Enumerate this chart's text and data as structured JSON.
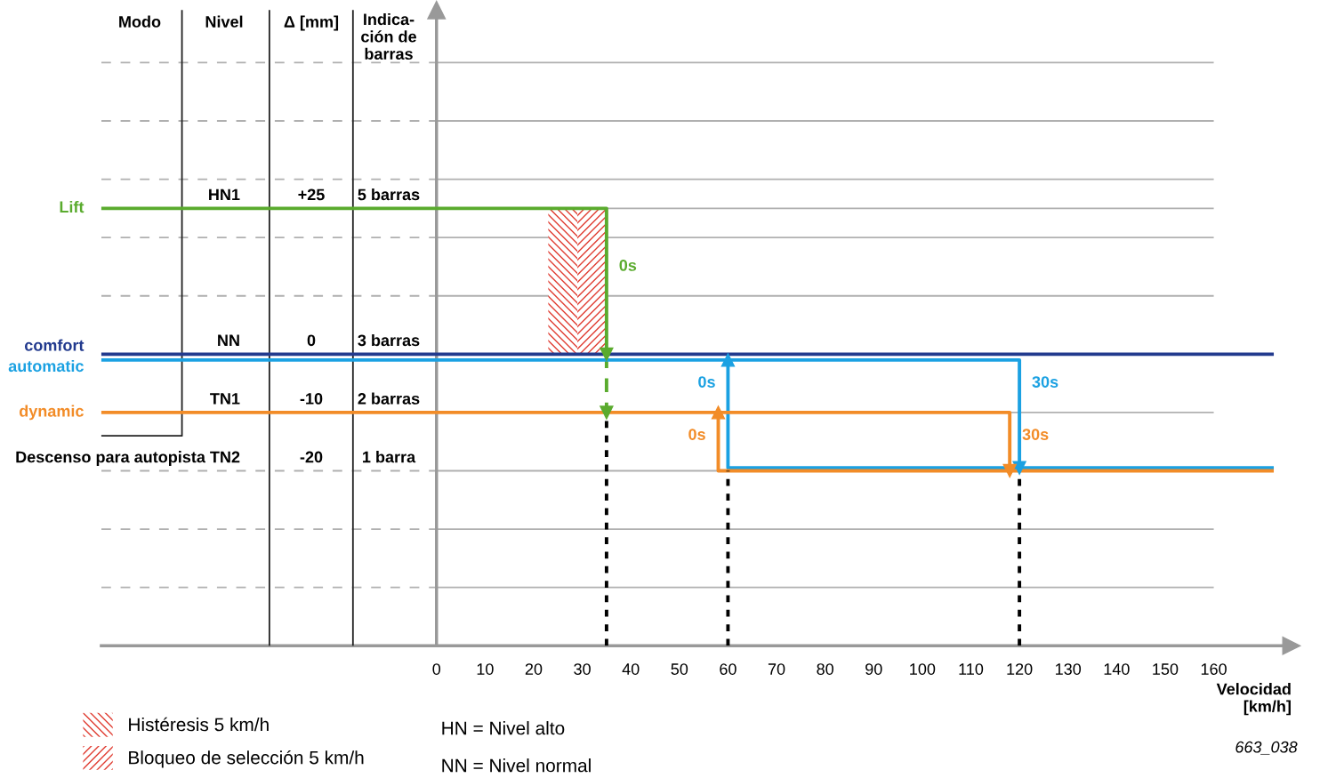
{
  "chart_data": {
    "type": "line",
    "xlabel": "Velocidad\n[km/h]",
    "ylabel": "Δ [mm]",
    "xlim": [
      -69,
      176
    ],
    "ylim": [
      -50,
      59
    ],
    "xticks": [
      0,
      10,
      20,
      30,
      40,
      50,
      60,
      70,
      80,
      90,
      100,
      110,
      120,
      130,
      140,
      150,
      160
    ],
    "yticks": [
      {
        "value": -40,
        "label": null
      },
      {
        "value": -30,
        "label": null
      },
      {
        "value": -20,
        "label": "-20"
      },
      {
        "value": -10,
        "label": "-10"
      },
      {
        "value": 0,
        "label": "0"
      },
      {
        "value": 10,
        "label": null
      },
      {
        "value": 20,
        "label": null
      },
      {
        "value": 25,
        "label": "+25"
      },
      {
        "value": 30,
        "label": null
      },
      {
        "value": 40,
        "label": null
      },
      {
        "value": 50,
        "label": null
      }
    ],
    "grid": "y",
    "legend": "bottom left",
    "series": [
      {
        "type": "area",
        "name": "Histéresis 5 km/h",
        "color": "#e03c31",
        "x": [
          23,
          29
        ],
        "values": [
          25,
          25
        ]
      },
      {
        "type": "area",
        "name": "Bloqueo de selección 5 km/h",
        "color": "#e03c31",
        "x": [
          29,
          35
        ],
        "values": [
          25,
          25
        ]
      },
      {
        "color": "#222222",
        "x": [
          -52.4,
          -52.4,
          -69
        ],
        "values": [
          59,
          -14,
          -14
        ]
      },
      {
        "color": "#222222",
        "x": [
          -34.4,
          -34.4
        ],
        "values": [
          59,
          -50
        ]
      },
      {
        "color": "#222222",
        "x": [
          -17.2,
          -17.2
        ],
        "values": [
          59,
          -50
        ]
      },
      {
        "type": "step",
        "name": "Lift",
        "color": "#5aab2e",
        "x": [
          -69,
          35,
          35
        ],
        "values": [
          25,
          25,
          0
        ]
      },
      {
        "type": "step",
        "color": "#5aab2e",
        "x": [
          35,
          35
        ],
        "values": [
          0,
          -10
        ],
        "line_style": "dashed"
      },
      {
        "type": "step",
        "name": "comfort",
        "color": "#223a8e",
        "x": [
          -69,
          172
        ],
        "values": [
          0,
          0
        ]
      },
      {
        "type": "step",
        "name": "automatic",
        "color": "#1ba1e2",
        "x": [
          -69,
          120,
          120
        ],
        "values": [
          -1,
          -1,
          -19.5
        ]
      },
      {
        "type": "step",
        "color": "#1ba1e2",
        "x": [
          172,
          60,
          60
        ],
        "values": [
          -19.5,
          -19.5,
          -1
        ]
      },
      {
        "type": "step",
        "name": "dynamic",
        "color": "#f28c28",
        "x": [
          -69,
          118,
          118
        ],
        "values": [
          -10,
          -10,
          -20
        ]
      },
      {
        "type": "step",
        "color": "#f28c28",
        "x": [
          172,
          58,
          58
        ],
        "values": [
          -20,
          -20,
          -10
        ]
      },
      {
        "color": "#000000",
        "x": [
          35,
          35
        ],
        "values": [
          -50,
          -10
        ],
        "line_style": "dotted"
      },
      {
        "color": "#000000",
        "x": [
          60,
          60
        ],
        "values": [
          -50,
          -20
        ],
        "line_style": "dotted"
      },
      {
        "color": "#000000",
        "x": [
          120,
          120
        ],
        "values": [
          -50,
          -20
        ],
        "line_style": "dotted"
      }
    ],
    "annotations": [
      "Modo",
      "Nivel",
      "Indica-\nción de\nbarras",
      "HN1",
      "5 barras",
      "NN",
      "3 barras",
      "TN1",
      "2 barras",
      "Descenso para autopista TN2",
      "1 barra",
      {
        "text": "0s",
        "x": 35,
        "y": 15
      },
      {
        "text": "30s",
        "x": 120,
        "y": -5
      },
      {
        "text": "0s",
        "x": 60,
        "y": -5
      },
      {
        "text": "30s",
        "x": 118,
        "y": -14
      },
      {
        "text": "0s",
        "x": 58,
        "y": -14
      },
      "HN = Nivel alto",
      "NN = Nivel normal",
      "663_038"
    ]
  }
}
